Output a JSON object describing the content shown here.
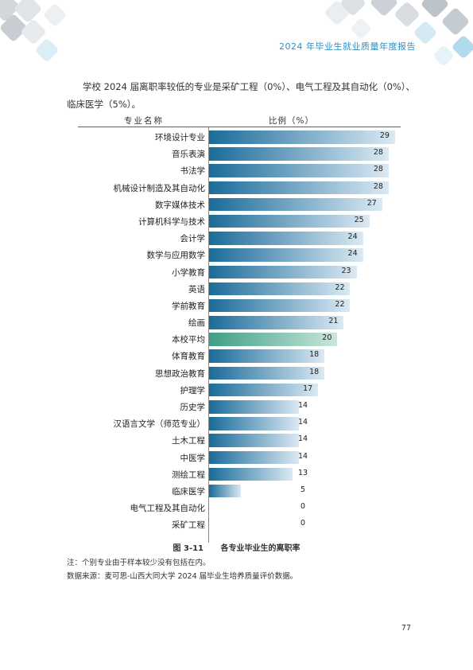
{
  "header": {
    "title": "2024 年毕业生就业质量年度报告"
  },
  "intro": "学校 2024 届离职率较低的专业是采矿工程（0%）、电气工程及其自动化（0%）、临床医学（5%）。",
  "chart_data": {
    "type": "bar",
    "orientation": "horizontal",
    "column_headers": [
      "专业名称",
      "比例（%）"
    ],
    "categories": [
      "环境设计专业",
      "音乐表演",
      "书法学",
      "机械设计制造及其自动化",
      "数字媒体技术",
      "计算机科学与技术",
      "会计学",
      "数学与应用数学",
      "小学教育",
      "英语",
      "学前教育",
      "绘画",
      "本校平均",
      "体育教育",
      "思想政治教育",
      "护理学",
      "历史学",
      "汉语言文学（师范专业）",
      "土木工程",
      "中医学",
      "测绘工程",
      "临床医学",
      "电气工程及其自动化",
      "采矿工程"
    ],
    "values": [
      29,
      28,
      28,
      28,
      27,
      25,
      24,
      24,
      23,
      22,
      22,
      21,
      20,
      18,
      18,
      17,
      14,
      14,
      14,
      14,
      13,
      5,
      0,
      0
    ],
    "highlight": "本校平均",
    "xlim": [
      0,
      30
    ],
    "colors": {
      "bar_dark": "#1a6b9a",
      "bar_light": "#dbe9f3",
      "avg_dark": "#3e9f86",
      "avg_light": "#c9e6dc"
    }
  },
  "caption": {
    "number": "图 3-11",
    "text": "各专业毕业生的离职率"
  },
  "notes": [
    "注：个别专业由于样本较少没有包括在内。",
    "数据来源：麦可思-山西大同大学 2024 届毕业生培养质量评价数据。"
  ],
  "page_number": "77"
}
